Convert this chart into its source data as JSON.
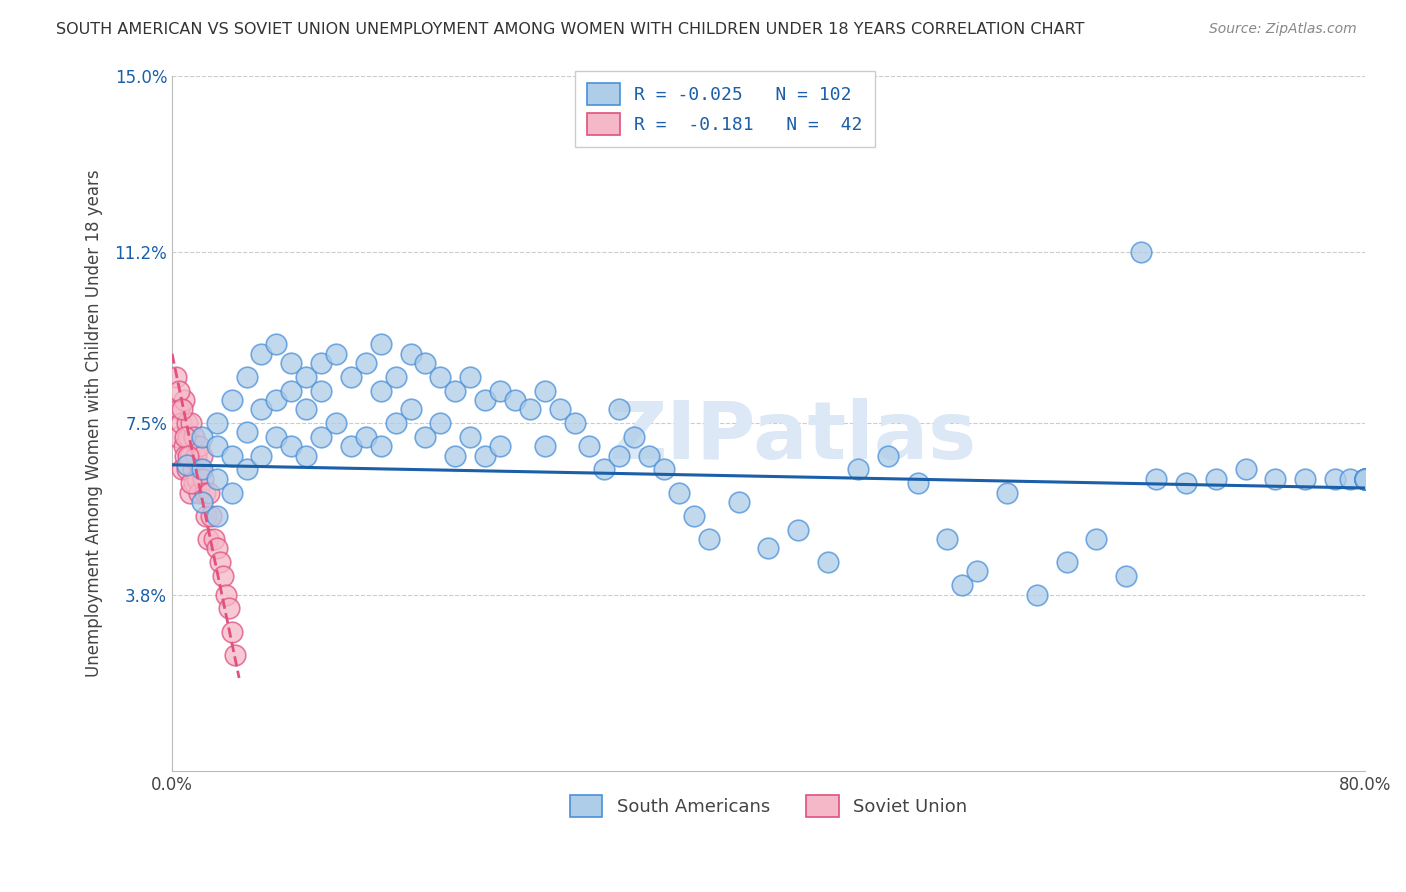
{
  "title": "SOUTH AMERICAN VS SOVIET UNION UNEMPLOYMENT AMONG WOMEN WITH CHILDREN UNDER 18 YEARS CORRELATION CHART",
  "source": "Source: ZipAtlas.com",
  "ylabel": "Unemployment Among Women with Children Under 18 years",
  "xlim": [
    0.0,
    0.8
  ],
  "ylim": [
    0.0,
    0.15
  ],
  "ytick_positions": [
    0.038,
    0.075,
    0.112,
    0.15
  ],
  "ytick_labels": [
    "3.8%",
    "7.5%",
    "11.2%",
    "15.0%"
  ],
  "xtick_positions": [
    0.0,
    0.8
  ],
  "xtick_labels": [
    "0.0%",
    "80.0%"
  ],
  "south_american_R": -0.025,
  "south_american_N": 102,
  "soviet_union_R": -0.181,
  "soviet_union_N": 42,
  "blue_fill": "#aecde8",
  "blue_edge": "#4a90d9",
  "pink_fill": "#f5b8c8",
  "pink_edge": "#e05080",
  "blue_line_color": "#1a5fa8",
  "pink_line_color": "#d03060",
  "watermark_color": "#dce8f5",
  "sa_x": [
    0.01,
    0.02,
    0.02,
    0.02,
    0.03,
    0.03,
    0.03,
    0.03,
    0.04,
    0.04,
    0.04,
    0.05,
    0.05,
    0.05,
    0.06,
    0.06,
    0.06,
    0.07,
    0.07,
    0.07,
    0.08,
    0.08,
    0.08,
    0.09,
    0.09,
    0.09,
    0.1,
    0.1,
    0.1,
    0.11,
    0.11,
    0.12,
    0.12,
    0.13,
    0.13,
    0.14,
    0.14,
    0.14,
    0.15,
    0.15,
    0.16,
    0.16,
    0.17,
    0.17,
    0.18,
    0.18,
    0.19,
    0.19,
    0.2,
    0.2,
    0.21,
    0.21,
    0.22,
    0.22,
    0.23,
    0.24,
    0.25,
    0.25,
    0.26,
    0.27,
    0.28,
    0.29,
    0.3,
    0.3,
    0.31,
    0.32,
    0.33,
    0.34,
    0.35,
    0.36,
    0.38,
    0.4,
    0.42,
    0.44,
    0.46,
    0.48,
    0.5,
    0.52,
    0.53,
    0.54,
    0.56,
    0.58,
    0.6,
    0.62,
    0.64,
    0.65,
    0.66,
    0.68,
    0.7,
    0.72,
    0.74,
    0.76,
    0.78,
    0.79,
    0.8,
    0.8,
    0.8,
    0.8,
    0.8,
    0.8,
    0.8,
    0.8
  ],
  "sa_y": [
    0.066,
    0.072,
    0.065,
    0.058,
    0.075,
    0.07,
    0.063,
    0.055,
    0.08,
    0.068,
    0.06,
    0.085,
    0.073,
    0.065,
    0.09,
    0.078,
    0.068,
    0.092,
    0.08,
    0.072,
    0.088,
    0.082,
    0.07,
    0.085,
    0.078,
    0.068,
    0.088,
    0.082,
    0.072,
    0.09,
    0.075,
    0.085,
    0.07,
    0.088,
    0.072,
    0.092,
    0.082,
    0.07,
    0.085,
    0.075,
    0.09,
    0.078,
    0.088,
    0.072,
    0.085,
    0.075,
    0.082,
    0.068,
    0.085,
    0.072,
    0.08,
    0.068,
    0.082,
    0.07,
    0.08,
    0.078,
    0.082,
    0.07,
    0.078,
    0.075,
    0.07,
    0.065,
    0.078,
    0.068,
    0.072,
    0.068,
    0.065,
    0.06,
    0.055,
    0.05,
    0.058,
    0.048,
    0.052,
    0.045,
    0.065,
    0.068,
    0.062,
    0.05,
    0.04,
    0.043,
    0.06,
    0.038,
    0.045,
    0.05,
    0.042,
    0.112,
    0.063,
    0.062,
    0.063,
    0.065,
    0.063,
    0.063,
    0.063,
    0.063,
    0.063,
    0.063,
    0.063,
    0.063,
    0.063,
    0.063,
    0.063,
    0.063
  ],
  "su_x": [
    0.004,
    0.005,
    0.006,
    0.007,
    0.008,
    0.008,
    0.009,
    0.01,
    0.01,
    0.011,
    0.012,
    0.012,
    0.013,
    0.014,
    0.015,
    0.015,
    0.016,
    0.017,
    0.018,
    0.018,
    0.019,
    0.02,
    0.021,
    0.022,
    0.023,
    0.024,
    0.025,
    0.026,
    0.028,
    0.03,
    0.032,
    0.034,
    0.036,
    0.038,
    0.04,
    0.042,
    0.003,
    0.005,
    0.007,
    0.009,
    0.011,
    0.013
  ],
  "su_y": [
    0.072,
    0.078,
    0.075,
    0.065,
    0.08,
    0.07,
    0.068,
    0.075,
    0.065,
    0.072,
    0.068,
    0.06,
    0.075,
    0.065,
    0.072,
    0.062,
    0.068,
    0.063,
    0.07,
    0.06,
    0.065,
    0.068,
    0.063,
    0.06,
    0.055,
    0.05,
    0.06,
    0.055,
    0.05,
    0.048,
    0.045,
    0.042,
    0.038,
    0.035,
    0.03,
    0.025,
    0.085,
    0.082,
    0.078,
    0.072,
    0.068,
    0.062
  ],
  "blue_regline_x": [
    0.0,
    0.8
  ],
  "blue_regline_y": [
    0.066,
    0.061
  ],
  "pink_regline_x": [
    0.0,
    0.045
  ],
  "pink_regline_y": [
    0.09,
    0.02
  ]
}
